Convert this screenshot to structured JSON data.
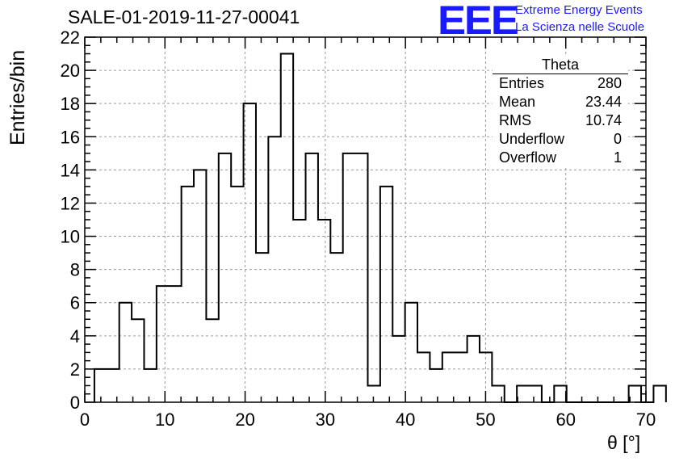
{
  "title": "SALE-01-2019-11-27-00041",
  "logo": {
    "text": "EEE",
    "line1": "Extreme Energy Events",
    "line2": "La Scienza nelle Scuole",
    "color": "#1a1aff"
  },
  "stats": {
    "name": "Theta",
    "rows": [
      {
        "label": "Entries",
        "value": "280"
      },
      {
        "label": "Mean",
        "value": "23.44"
      },
      {
        "label": "RMS",
        "value": "10.74"
      },
      {
        "label": "Underflow",
        "value": "0"
      },
      {
        "label": "Overflow",
        "value": "1"
      }
    ]
  },
  "chart_data": {
    "type": "bar",
    "histogram": true,
    "xlabel": "θ [°]",
    "ylabel": "Entries/bin",
    "xlim": [
      0,
      70
    ],
    "ylim": [
      0,
      22
    ],
    "grid": true,
    "bin_width": 1.55,
    "bin_start": 1.2,
    "x_ticks": [
      "0",
      "10",
      "20",
      "30",
      "40",
      "50",
      "60",
      "70"
    ],
    "y_ticks": [
      "0",
      "2",
      "4",
      "6",
      "8",
      "10",
      "12",
      "14",
      "16",
      "18",
      "20",
      "22"
    ],
    "values": [
      2,
      2,
      6,
      5,
      2,
      7,
      7,
      13,
      14,
      5,
      15,
      13,
      18,
      9,
      16,
      21,
      11,
      15,
      11,
      9,
      15,
      15,
      1,
      13,
      4,
      6,
      3,
      2,
      3,
      3,
      4,
      3,
      1,
      0,
      1,
      1,
      0,
      1,
      0,
      0,
      0,
      0,
      0,
      1,
      0,
      1
    ],
    "line_color": "#000000",
    "grid_color": "#9a9a9a"
  }
}
